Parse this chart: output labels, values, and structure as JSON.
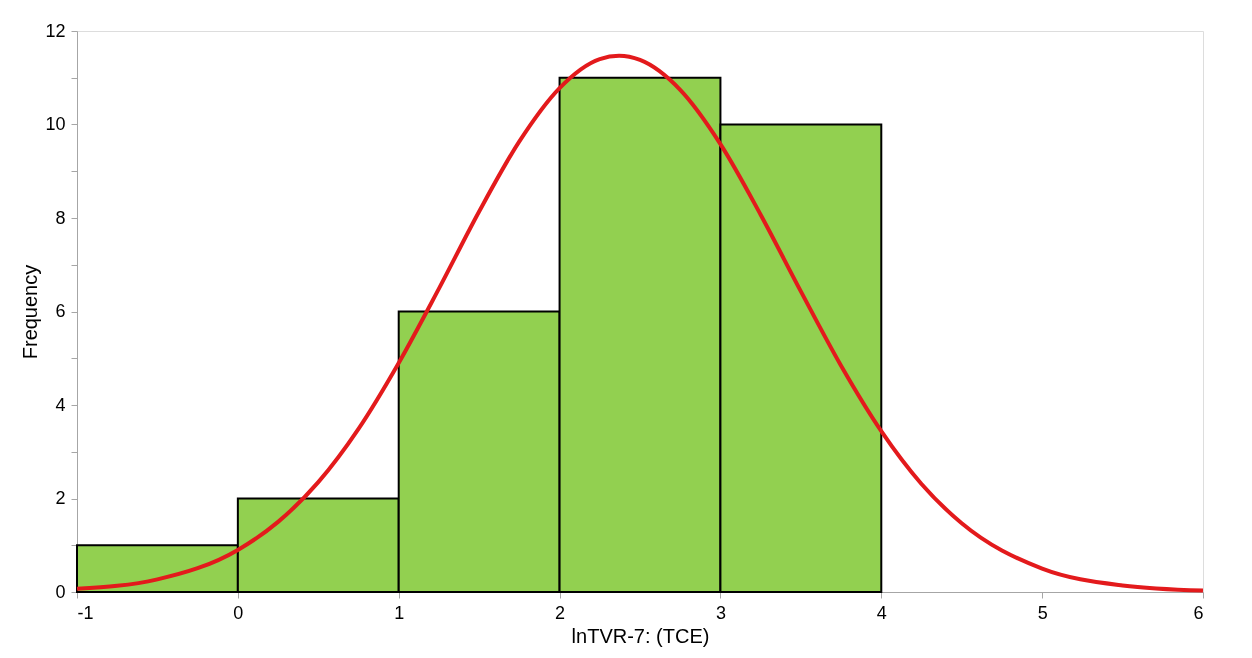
{
  "chart_data": {
    "type": "histogram",
    "xlabel": "lnTVR-7: (TCE)",
    "ylabel": "Frequency",
    "bins": [
      -1,
      0,
      1,
      2,
      3,
      4
    ],
    "values": [
      1,
      2,
      6,
      11,
      10
    ],
    "color": "#92d050",
    "series": [
      {
        "type": "line",
        "color": "#e31a1c",
        "x": [
          -1,
          -0.5,
          0,
          0.25,
          0.5,
          0.75,
          1,
          1.25,
          1.5,
          1.75,
          2,
          2.25,
          2.37,
          2.5,
          2.75,
          3,
          3.25,
          3.5,
          3.75,
          4,
          4.25,
          4.5,
          5,
          5.5,
          6
        ],
        "values": [
          0.07,
          0.27,
          0.9,
          1.5,
          2.35,
          3.49,
          4.9,
          6.49,
          8.14,
          9.64,
          10.78,
          11.4,
          11.47,
          11.38,
          10.74,
          9.58,
          8.07,
          6.43,
          4.84,
          3.44,
          2.31,
          1.47,
          0.5,
          0.14,
          0.03
        ]
      }
    ],
    "xlim": [
      -1,
      6
    ],
    "xticks": [
      -1,
      0,
      1,
      2,
      3,
      4,
      5,
      6
    ],
    "ylim": [
      0,
      12
    ],
    "yticks": [
      0,
      {
        "value": 1,
        "label": null
      },
      2,
      {
        "value": 3,
        "label": null
      },
      4,
      {
        "value": 5,
        "label": null
      },
      6,
      {
        "value": 7,
        "label": null
      },
      8,
      {
        "value": 9,
        "label": null
      },
      10,
      {
        "value": 11,
        "label": null
      },
      12
    ],
    "grid": false
  }
}
